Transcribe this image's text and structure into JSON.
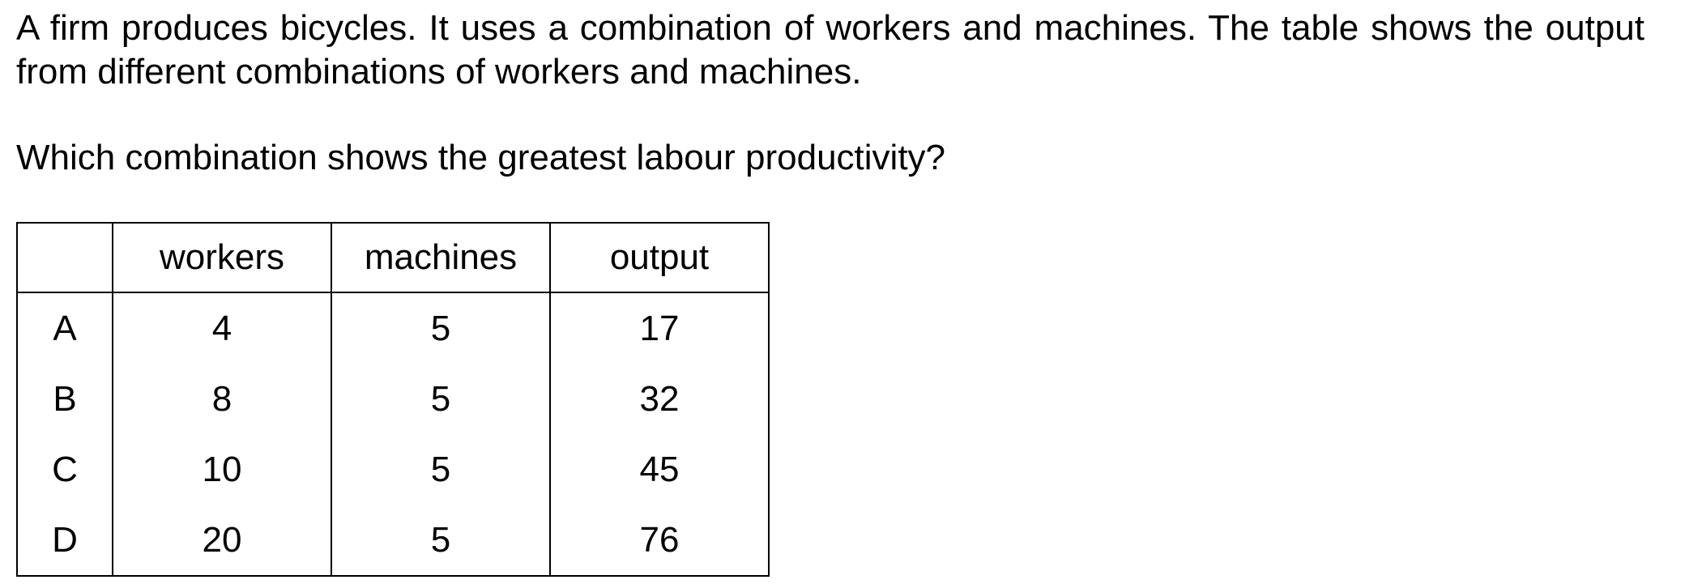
{
  "question": {
    "stem": "A firm produces bicycles. It uses a combination of workers and machines. The table shows the output from different combinations of workers and machines.",
    "ask": "Which combination shows the greatest labour productivity?"
  },
  "table": {
    "headers": [
      "",
      "workers",
      "machines",
      "output"
    ],
    "rows": [
      {
        "key": "A",
        "workers": "4",
        "machines": "5",
        "output": "17"
      },
      {
        "key": "B",
        "workers": "8",
        "machines": "5",
        "output": "32"
      },
      {
        "key": "C",
        "workers": "10",
        "machines": "5",
        "output": "45"
      },
      {
        "key": "D",
        "workers": "20",
        "machines": "5",
        "output": "76"
      }
    ]
  }
}
